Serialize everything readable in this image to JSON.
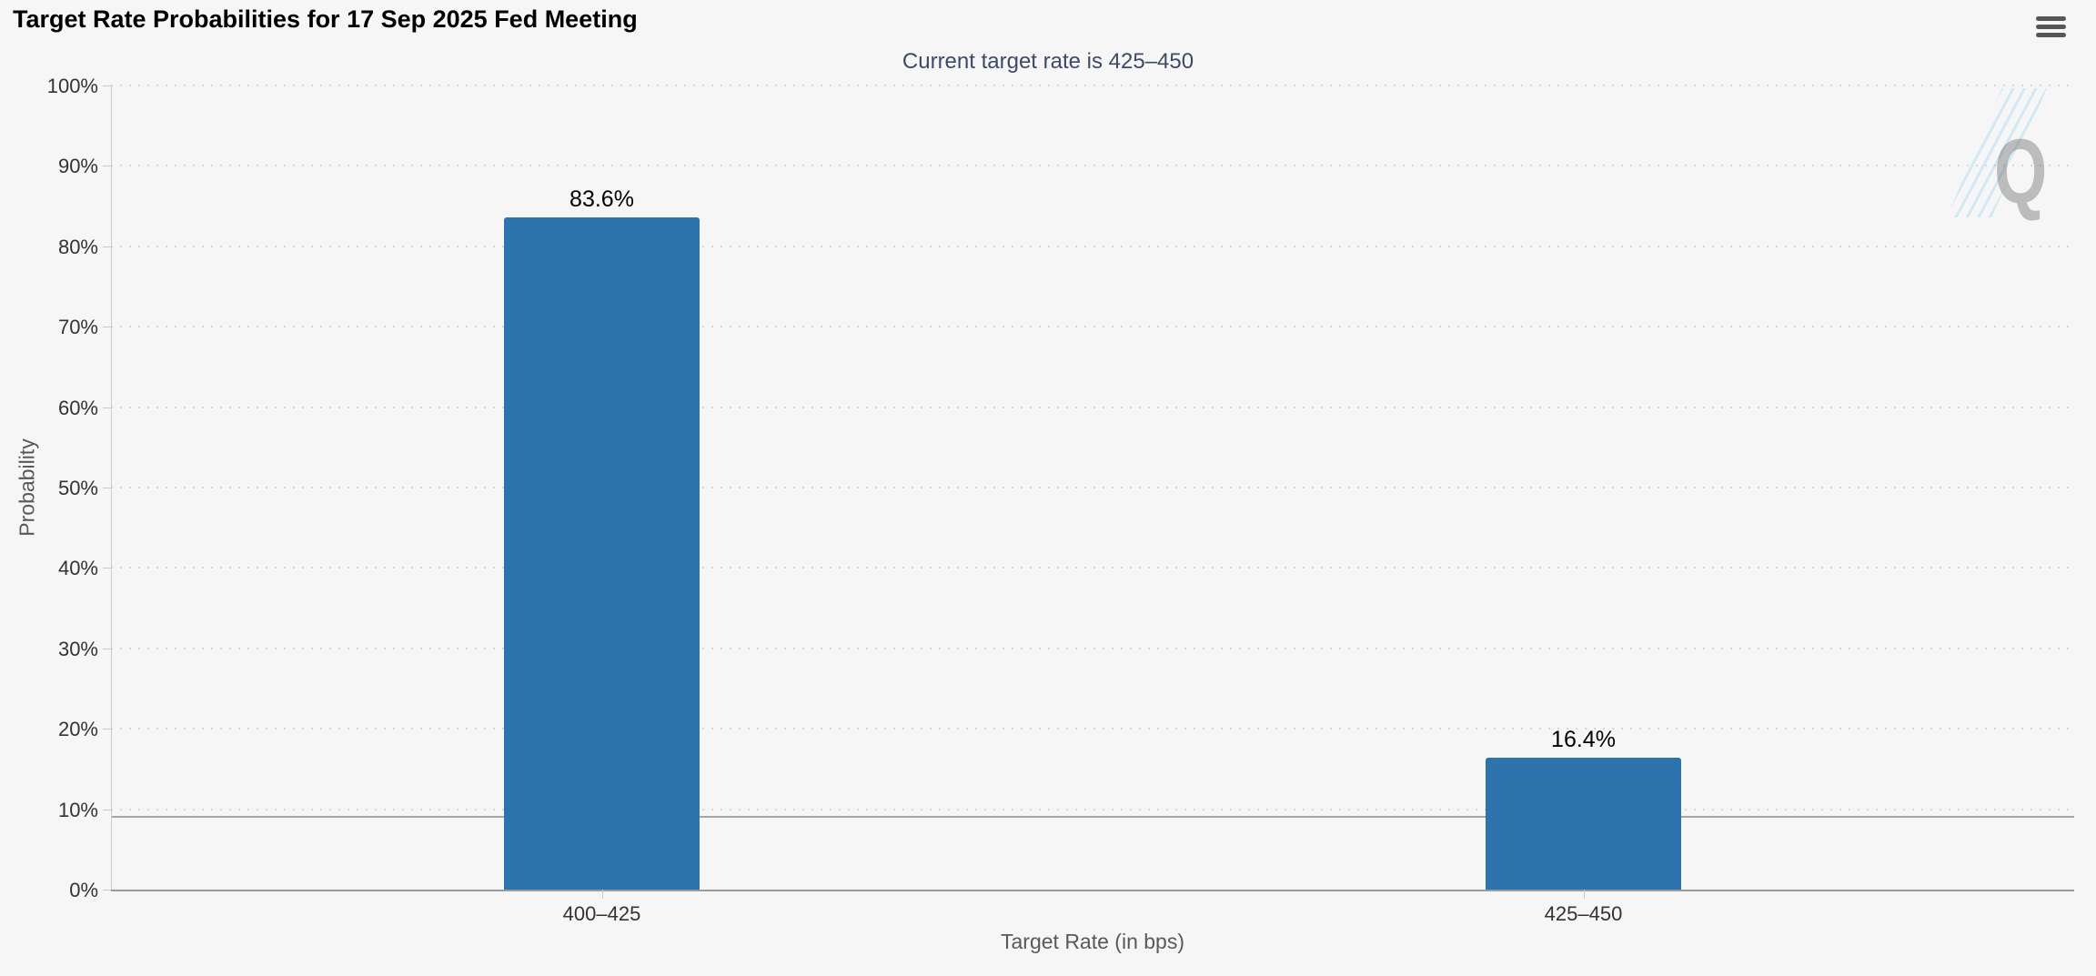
{
  "header": {
    "title": "Target Rate Probabilities for 17 Sep 2025 Fed Meeting"
  },
  "chart_data": {
    "type": "bar",
    "title": "Target Rate Probabilities for 17 Sep 2025 Fed Meeting",
    "subtitle": "Current target rate is 425–450",
    "categories": [
      "400–425",
      "425–450"
    ],
    "values": [
      83.6,
      16.4
    ],
    "data_labels": [
      "83.6%",
      "16.4%"
    ],
    "xlabel": "Target Rate (in bps)",
    "ylabel": "Probability",
    "ylim": [
      0,
      100
    ],
    "ytick_labels": [
      "0%",
      "10%",
      "20%",
      "30%",
      "40%",
      "50%",
      "60%",
      "70%",
      "80%",
      "90%",
      "100%"
    ],
    "grid": "dotted horizontal",
    "legend": "none",
    "reference_line_y": 9,
    "colors": {
      "bar": "#2d74ae",
      "subtitle_text": "#3d4a66",
      "axis_label": "#333333",
      "axis_title": "#595959",
      "background": "#f6f6f7",
      "gridline": "#d6d6d6",
      "reference_line": "#a6a6a6"
    },
    "watermark": "Q"
  }
}
